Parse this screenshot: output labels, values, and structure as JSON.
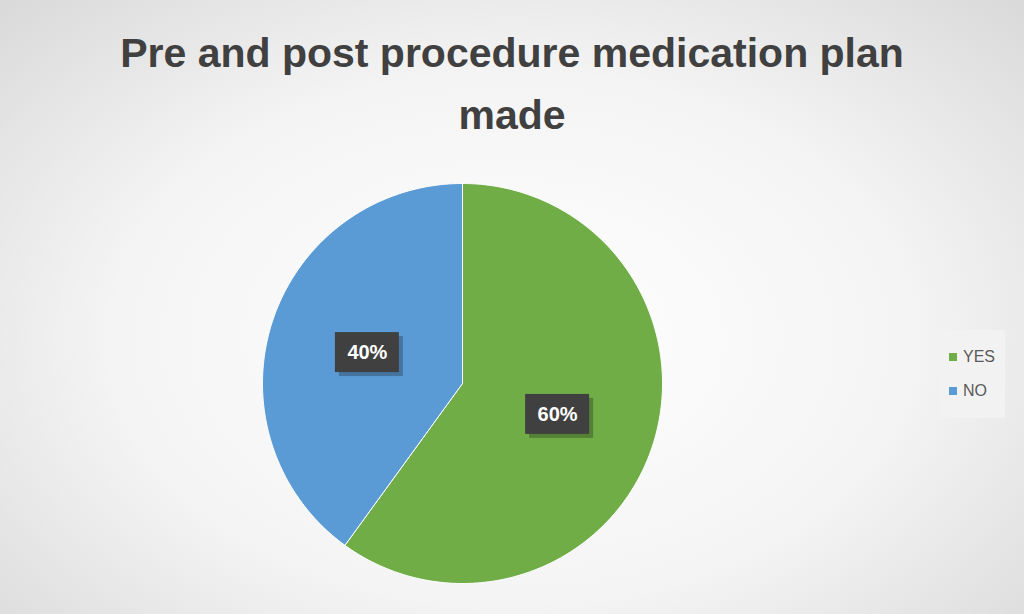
{
  "chart_data": {
    "type": "pie",
    "title": "Pre and post procedure medication plan made",
    "categories": [
      "YES",
      "NO"
    ],
    "values": [
      60,
      40
    ],
    "value_labels": [
      "60%",
      "40%"
    ],
    "colors": [
      "#70ad47",
      "#5b9bd5"
    ],
    "data_labels": true,
    "legend": "right"
  }
}
